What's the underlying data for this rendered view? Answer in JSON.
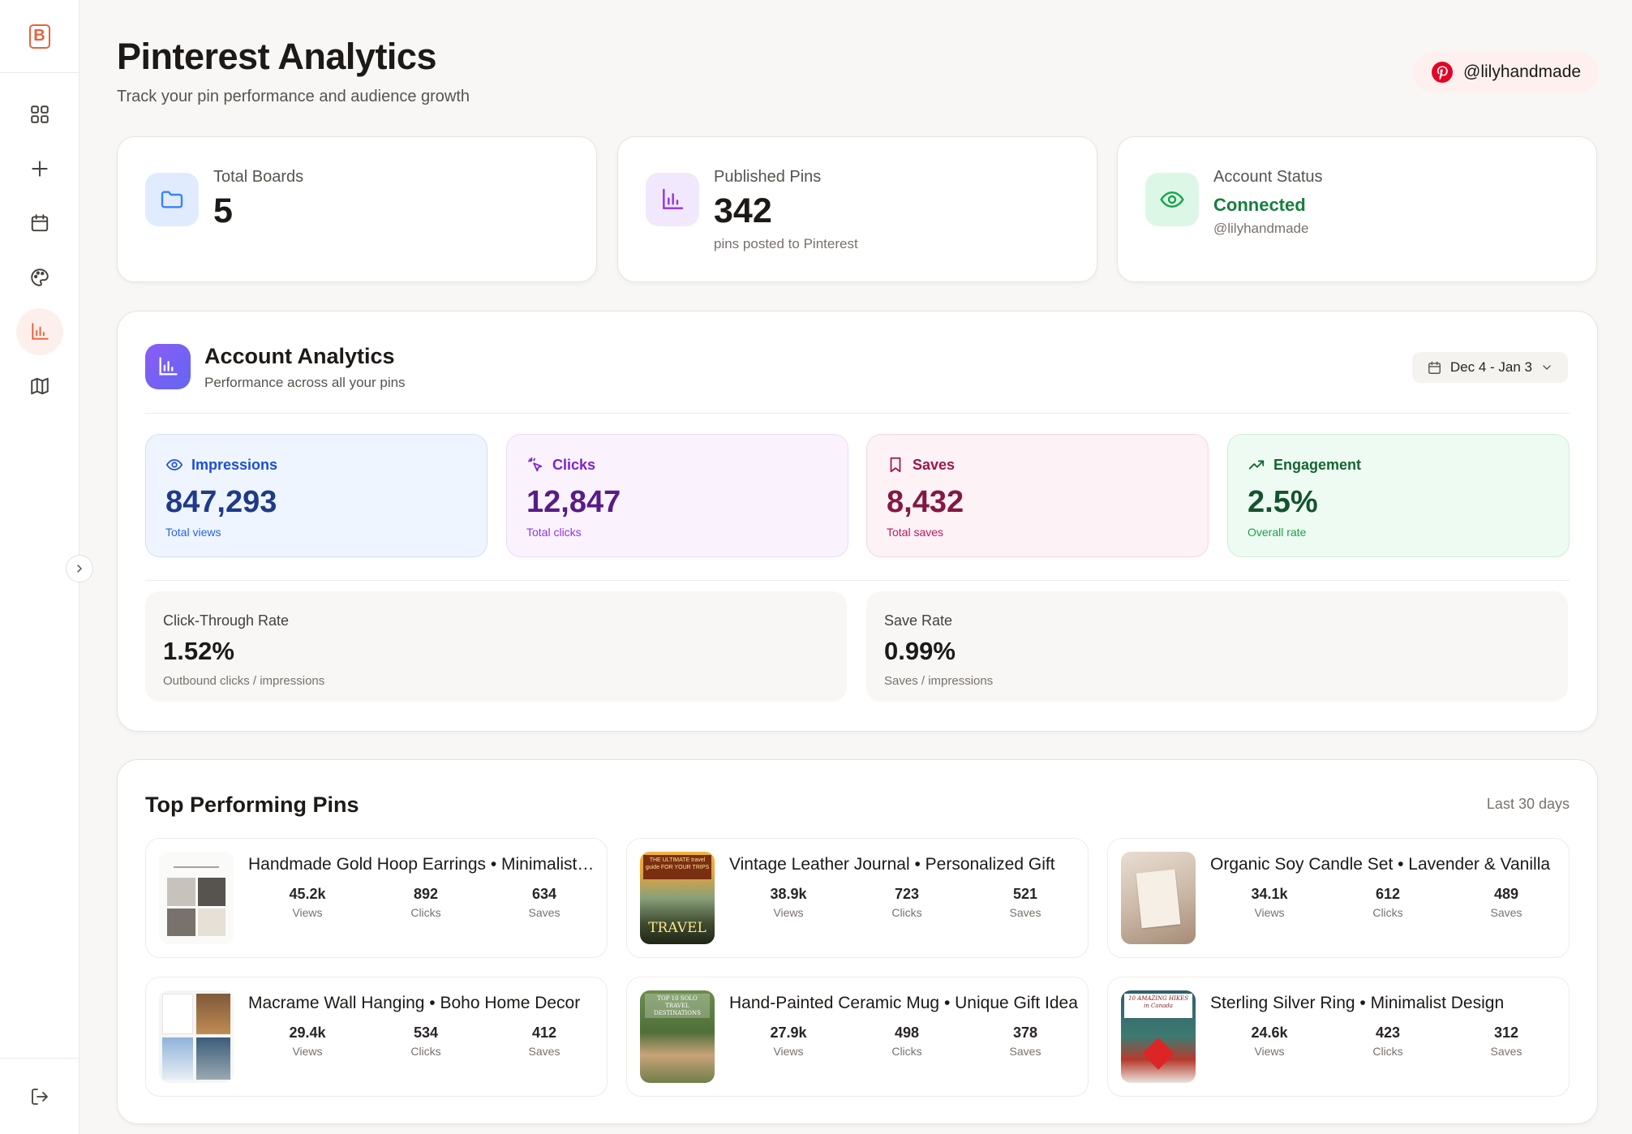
{
  "app": {
    "logo_letter": "B"
  },
  "sidebar": {
    "items": [
      {
        "name": "dashboard",
        "icon": "grid-icon"
      },
      {
        "name": "create",
        "icon": "plus-icon"
      },
      {
        "name": "calendar",
        "icon": "calendar-icon"
      },
      {
        "name": "design",
        "icon": "palette-icon"
      },
      {
        "name": "analytics",
        "icon": "bar-chart-icon",
        "active": true
      },
      {
        "name": "boards",
        "icon": "map-icon"
      }
    ],
    "logout_icon": "logout-icon",
    "collapse_icon": "chevron-right-icon"
  },
  "header": {
    "title": "Pinterest Analytics",
    "subtitle": "Track your pin performance and audience growth",
    "account_handle": "@lilyhandmade"
  },
  "stats": {
    "boards": {
      "label": "Total Boards",
      "value": "5"
    },
    "pins": {
      "label": "Published Pins",
      "value": "342",
      "sub": "pins posted to Pinterest"
    },
    "status": {
      "label": "Account Status",
      "value": "Connected",
      "sub": "@lilyhandmade"
    }
  },
  "analytics": {
    "title": "Account Analytics",
    "subtitle": "Performance across all your pins",
    "date_range": "Dec 4 - Jan 3",
    "metrics": {
      "impressions": {
        "label": "Impressions",
        "value": "847,293",
        "sub": "Total views"
      },
      "clicks": {
        "label": "Clicks",
        "value": "12,847",
        "sub": "Total clicks"
      },
      "saves": {
        "label": "Saves",
        "value": "8,432",
        "sub": "Total saves"
      },
      "engagement": {
        "label": "Engagement",
        "value": "2.5%",
        "sub": "Overall rate"
      }
    },
    "ctr": {
      "label": "Click-Through Rate",
      "value": "1.52%",
      "sub": "Outbound clicks / impressions"
    },
    "save_rate": {
      "label": "Save Rate",
      "value": "0.99%",
      "sub": "Saves / impressions"
    }
  },
  "top_pins": {
    "title": "Top Performing Pins",
    "range": "Last 30 days",
    "stat_labels": {
      "views": "Views",
      "clicks": "Clicks",
      "saves": "Saves"
    },
    "pins": [
      {
        "title": "Handmade Gold Hoop Earrings • Minimalist Jewelry",
        "views": "45.2k",
        "clicks": "892",
        "saves": "634"
      },
      {
        "title": "Vintage Leather Journal • Personalized Gift",
        "views": "38.9k",
        "clicks": "723",
        "saves": "521",
        "thumb_text_top": "THE ULTIMATE travel guide FOR YOUR TRIPS",
        "thumb_text_bottom": "TRAVEL"
      },
      {
        "title": "Organic Soy Candle Set • Lavender & Vanilla",
        "views": "34.1k",
        "clicks": "612",
        "saves": "489"
      },
      {
        "title": "Macrame Wall Hanging • Boho Home Decor",
        "views": "29.4k",
        "clicks": "534",
        "saves": "412"
      },
      {
        "title": "Hand-Painted Ceramic Mug • Unique Gift Idea",
        "views": "27.9k",
        "clicks": "498",
        "saves": "378",
        "thumb_text_top": "TOP 10 SOLO TRAVEL DESTINATIONS"
      },
      {
        "title": "Sterling Silver Ring • Minimalist Design",
        "views": "24.6k",
        "clicks": "423",
        "saves": "312",
        "thumb_text_top": "10 AMAZING HIKES in Canada"
      }
    ]
  },
  "colors": {
    "accent": "#e8613c",
    "pinterest_red": "#e60023",
    "connected_green": "#15803d"
  }
}
